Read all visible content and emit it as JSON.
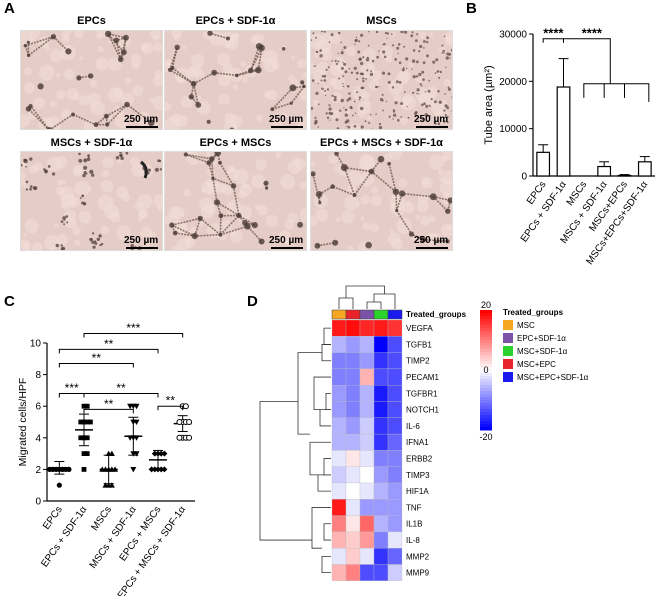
{
  "panels": {
    "a": "A",
    "b": "B",
    "c": "C",
    "d": "D"
  },
  "micrographs": {
    "scale_label": "250 µm",
    "items": [
      {
        "label": "EPCs"
      },
      {
        "label": "EPCs + SDF-1α"
      },
      {
        "label": "MSCs"
      },
      {
        "label": "MSCs + SDF-1α"
      },
      {
        "label": "EPCs + MSCs"
      },
      {
        "label": "EPCs + MSCs + SDF-1α"
      }
    ]
  },
  "chart_data": [
    {
      "id": "B",
      "type": "bar",
      "ylabel": "Tube area (µm²)",
      "ylim": [
        0,
        30000
      ],
      "yticks": [
        "0",
        "10000",
        "20000",
        "30000"
      ],
      "categories": [
        "EPCs",
        "EPCs + SDF-1α",
        "MSCs",
        "MSCs + SDF-1α",
        "MSCs+EPCs",
        "MSCs+EPCs+SDF-1α"
      ],
      "values": [
        5000,
        18800,
        0,
        2000,
        100,
        3000
      ],
      "errors": [
        1600,
        6000,
        0,
        1000,
        200,
        1100
      ],
      "annotations": [
        "****",
        "****"
      ]
    },
    {
      "id": "C",
      "type": "scatter",
      "ylabel": "Migrated cells/HPF",
      "ylim": [
        0,
        10
      ],
      "yticks": [
        "0",
        "2",
        "4",
        "6",
        "8",
        "10"
      ],
      "categories": [
        "EPCs",
        "EPCs + SDF-1α",
        "MSCs",
        "MSCs + SDF-1α",
        "EPCs + MSCs",
        "EPCs + MSCs + SDF-1α"
      ],
      "means": [
        2.1,
        4.5,
        2.0,
        4.1,
        2.6,
        4.9
      ],
      "errors": [
        0.4,
        1.0,
        0.9,
        1.2,
        0.6,
        0.5
      ],
      "points": [
        [
          2,
          2,
          2,
          2,
          1,
          2,
          2,
          2
        ],
        [
          2,
          3,
          3,
          4,
          4,
          4,
          5,
          5,
          5,
          6,
          6,
          5
        ],
        [
          1,
          1,
          2,
          2,
          2,
          2,
          3,
          3,
          2,
          1
        ],
        [
          2,
          3,
          3,
          4,
          4,
          5,
          5,
          6,
          6,
          6,
          4
        ],
        [
          2,
          2,
          2,
          3,
          3,
          3,
          3,
          2,
          2
        ],
        [
          4,
          4,
          5,
          5,
          5,
          5,
          6,
          4,
          4,
          6
        ]
      ],
      "markers": [
        "circle",
        "square",
        "triangle",
        "triangle-down",
        "diamond",
        "circle-open"
      ],
      "annotations": [
        "***",
        "**",
        "**",
        "***",
        "**",
        "**"
      ]
    },
    {
      "id": "D",
      "type": "heatmap",
      "column_header": "Treated_groups",
      "rows": [
        "VEGFA",
        "TGFB1",
        "TIMP2",
        "PECAM1",
        "TGFBR1",
        "NOTCH1",
        "IL-6",
        "IFNA1",
        "ERBB2",
        "TIMP3",
        "HIF1A",
        "TNF",
        "IL1B",
        "IL-8",
        "MMP2",
        "MMP9"
      ],
      "columns": [
        "MSC",
        "MSC+EPC",
        "EPC+SDF-1α",
        "MSC+SDF-1α",
        "MSC+EPC+SDF-1α"
      ],
      "column_colors": [
        "#f5a623",
        "#e8232a",
        "#7b52a8",
        "#2bd22b",
        "#1a1aee"
      ],
      "values": [
        [
          18,
          19,
          17,
          18,
          16
        ],
        [
          -6,
          -8,
          -6,
          -20,
          -14
        ],
        [
          -10,
          -10,
          -8,
          -16,
          -14
        ],
        [
          -10,
          -10,
          6,
          -14,
          -14
        ],
        [
          -8,
          -10,
          -6,
          -18,
          -14
        ],
        [
          -8,
          -10,
          -6,
          -18,
          -14
        ],
        [
          -6,
          -8,
          -4,
          -16,
          -14
        ],
        [
          -6,
          -6,
          -4,
          -16,
          -12
        ],
        [
          -2,
          2,
          -2,
          -10,
          -10
        ],
        [
          -4,
          -2,
          0,
          -8,
          -10
        ],
        [
          -2,
          0,
          -2,
          -6,
          -8
        ],
        [
          18,
          -2,
          -8,
          -8,
          -8
        ],
        [
          10,
          2,
          12,
          -6,
          -8
        ],
        [
          6,
          4,
          8,
          -10,
          -2
        ],
        [
          -2,
          4,
          -2,
          -16,
          -12
        ],
        [
          6,
          10,
          -14,
          -14,
          -4
        ]
      ],
      "legend_ticks": [
        "20",
        "0",
        "-20"
      ],
      "legend": {
        "title": "Treated_groups",
        "items": [
          {
            "label": "MSC",
            "color": "#f5a623"
          },
          {
            "label": "EPC+SDF-1α",
            "color": "#7b52a8"
          },
          {
            "label": "MSC+SDF-1α",
            "color": "#2bd22b"
          },
          {
            "label": "MSC+EPC",
            "color": "#e8232a"
          },
          {
            "label": "MSC+EPC+SDF-1α",
            "color": "#1a1aee"
          }
        ]
      }
    }
  ]
}
